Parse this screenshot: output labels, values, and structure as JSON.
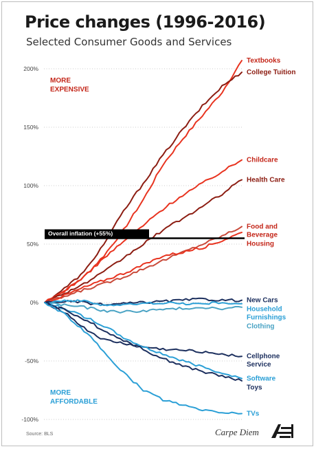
{
  "chart_data": {
    "type": "line",
    "title": "Price changes (1996-2016)",
    "subtitle": "Selected Consumer Goods and Services",
    "x_range": [
      1996,
      2016
    ],
    "ylim": [
      -100,
      210
    ],
    "y_ticks": [
      "200%",
      "150%",
      "100%",
      "50%",
      "0%",
      "-50%",
      "-100%"
    ],
    "y_tick_values": [
      200,
      150,
      100,
      50,
      0,
      -50,
      -100
    ],
    "grid": "horizontal dotted",
    "annotations": {
      "more_expensive": [
        "MORE",
        "EXPENSIVE"
      ],
      "more_affordable": [
        "MORE",
        "AFFORDABLE"
      ],
      "inflation_label": "Overall inflation (+55%)",
      "inflation_value": 55
    },
    "series": [
      {
        "name": "Textbooks",
        "color": "#e8331f",
        "end": 207,
        "points": [
          [
            1996,
            0
          ],
          [
            1998,
            10
          ],
          [
            2000,
            22
          ],
          [
            2002,
            40
          ],
          [
            2004,
            62
          ],
          [
            2006,
            88
          ],
          [
            2008,
            118
          ],
          [
            2010,
            140
          ],
          [
            2012,
            160
          ],
          [
            2014,
            180
          ],
          [
            2016,
            207
          ]
        ]
      },
      {
        "name": "College Tuition",
        "color": "#8c1d12",
        "end": 197,
        "points": [
          [
            1996,
            0
          ],
          [
            1998,
            12
          ],
          [
            2000,
            26
          ],
          [
            2002,
            50
          ],
          [
            2004,
            78
          ],
          [
            2006,
            102
          ],
          [
            2008,
            126
          ],
          [
            2010,
            148
          ],
          [
            2012,
            168
          ],
          [
            2014,
            185
          ],
          [
            2016,
            197
          ]
        ]
      },
      {
        "name": "Childcare",
        "color": "#e8331f",
        "end": 122,
        "points": [
          [
            1996,
            0
          ],
          [
            1998,
            10
          ],
          [
            2000,
            22
          ],
          [
            2002,
            38
          ],
          [
            2004,
            52
          ],
          [
            2006,
            66
          ],
          [
            2008,
            80
          ],
          [
            2010,
            92
          ],
          [
            2012,
            102
          ],
          [
            2014,
            112
          ],
          [
            2016,
            122
          ]
        ]
      },
      {
        "name": "Health Care",
        "color": "#8c1d12",
        "end": 105,
        "points": [
          [
            1996,
            0
          ],
          [
            1998,
            8
          ],
          [
            2000,
            16
          ],
          [
            2002,
            26
          ],
          [
            2004,
            38
          ],
          [
            2006,
            50
          ],
          [
            2008,
            62
          ],
          [
            2010,
            72
          ],
          [
            2012,
            82
          ],
          [
            2014,
            93
          ],
          [
            2016,
            105
          ]
        ]
      },
      {
        "name": "Food and Beverage",
        "color": "#c94a3a",
        "end": 65,
        "points": [
          [
            1996,
            0
          ],
          [
            1998,
            5
          ],
          [
            2000,
            11
          ],
          [
            2002,
            16
          ],
          [
            2004,
            22
          ],
          [
            2006,
            29
          ],
          [
            2008,
            36
          ],
          [
            2010,
            43
          ],
          [
            2012,
            50
          ],
          [
            2014,
            57
          ],
          [
            2016,
            65
          ]
        ]
      },
      {
        "name": "Housing",
        "color": "#e8331f",
        "end": 60,
        "points": [
          [
            1996,
            0
          ],
          [
            1998,
            6
          ],
          [
            2000,
            13
          ],
          [
            2002,
            19
          ],
          [
            2004,
            25
          ],
          [
            2006,
            32
          ],
          [
            2008,
            40
          ],
          [
            2010,
            43
          ],
          [
            2012,
            47
          ],
          [
            2014,
            53
          ],
          [
            2016,
            60
          ]
        ]
      },
      {
        "name": "New Cars",
        "color": "#1c2f5e",
        "end": 2,
        "points": [
          [
            1996,
            0
          ],
          [
            1998,
            1
          ],
          [
            2000,
            0
          ],
          [
            2002,
            -2
          ],
          [
            2004,
            -1
          ],
          [
            2006,
            0
          ],
          [
            2008,
            1
          ],
          [
            2010,
            2
          ],
          [
            2012,
            3
          ],
          [
            2014,
            2
          ],
          [
            2016,
            2
          ]
        ]
      },
      {
        "name": "Household Furnishings",
        "color": "#2a9fd6",
        "end": -1,
        "points": [
          [
            1996,
            0
          ],
          [
            1998,
            2
          ],
          [
            2000,
            1
          ],
          [
            2002,
            -2
          ],
          [
            2004,
            -2
          ],
          [
            2006,
            -1
          ],
          [
            2008,
            0
          ],
          [
            2010,
            -1
          ],
          [
            2012,
            -1
          ],
          [
            2014,
            0
          ],
          [
            2016,
            -1
          ]
        ]
      },
      {
        "name": "Clothing",
        "color": "#4aa3c4",
        "end": -4,
        "points": [
          [
            1996,
            0
          ],
          [
            1998,
            -2
          ],
          [
            2000,
            -4
          ],
          [
            2002,
            -7
          ],
          [
            2004,
            -8
          ],
          [
            2006,
            -7
          ],
          [
            2008,
            -6
          ],
          [
            2010,
            -5
          ],
          [
            2012,
            -4
          ],
          [
            2014,
            -5
          ],
          [
            2016,
            -4
          ]
        ]
      },
      {
        "name": "Cellphone Service",
        "color": "#1c2f5e",
        "end": -46,
        "points": [
          [
            1996,
            0
          ],
          [
            1998,
            -8
          ],
          [
            2000,
            -22
          ],
          [
            2002,
            -32
          ],
          [
            2004,
            -35
          ],
          [
            2006,
            -38
          ],
          [
            2008,
            -40
          ],
          [
            2010,
            -41
          ],
          [
            2012,
            -42
          ],
          [
            2014,
            -44
          ],
          [
            2016,
            -46
          ]
        ]
      },
      {
        "name": "Software",
        "color": "#2a9fd6",
        "end": -65,
        "points": [
          [
            1996,
            0
          ],
          [
            1998,
            -5
          ],
          [
            2000,
            -12
          ],
          [
            2002,
            -20
          ],
          [
            2004,
            -30
          ],
          [
            2006,
            -38
          ],
          [
            2008,
            -44
          ],
          [
            2010,
            -50
          ],
          [
            2012,
            -55
          ],
          [
            2014,
            -60
          ],
          [
            2016,
            -65
          ]
        ]
      },
      {
        "name": "Toys",
        "color": "#1c2f5e",
        "end": -67,
        "points": [
          [
            1996,
            0
          ],
          [
            1998,
            -6
          ],
          [
            2000,
            -14
          ],
          [
            2002,
            -24
          ],
          [
            2004,
            -32
          ],
          [
            2006,
            -40
          ],
          [
            2008,
            -48
          ],
          [
            2010,
            -54
          ],
          [
            2012,
            -59
          ],
          [
            2014,
            -63
          ],
          [
            2016,
            -67
          ]
        ]
      },
      {
        "name": "TVs",
        "color": "#2a9fd6",
        "end": -95,
        "points": [
          [
            1996,
            0
          ],
          [
            1998,
            -10
          ],
          [
            2000,
            -24
          ],
          [
            2002,
            -42
          ],
          [
            2004,
            -60
          ],
          [
            2006,
            -75
          ],
          [
            2008,
            -83
          ],
          [
            2010,
            -88
          ],
          [
            2012,
            -92
          ],
          [
            2014,
            -94
          ],
          [
            2016,
            -95
          ]
        ]
      }
    ],
    "labels": [
      {
        "series": "Textbooks",
        "lines": [
          "Textbooks"
        ],
        "color": "#c4271a"
      },
      {
        "series": "College Tuition",
        "lines": [
          "College Tuition"
        ],
        "color": "#8c1d12"
      },
      {
        "series": "Childcare",
        "lines": [
          "Childcare"
        ],
        "color": "#c4271a"
      },
      {
        "series": "Health Care",
        "lines": [
          "Health Care"
        ],
        "color": "#8c1d12"
      },
      {
        "series": "Food and Beverage",
        "lines": [
          "Food and",
          "Beverage"
        ],
        "color": "#c4271a"
      },
      {
        "series": "Housing",
        "lines": [
          "Housing"
        ],
        "color": "#c4271a"
      },
      {
        "series": "New Cars",
        "lines": [
          "New Cars"
        ],
        "color": "#1c2f5e"
      },
      {
        "series": "Household Furnishings",
        "lines": [
          "Household",
          "Furnishings"
        ],
        "color": "#2a9fd6"
      },
      {
        "series": "Clothing",
        "lines": [
          "Clothing"
        ],
        "color": "#4aa3c4"
      },
      {
        "series": "Cellphone Service",
        "lines": [
          "Cellphone",
          "Service"
        ],
        "color": "#1c2f5e"
      },
      {
        "series": "Software",
        "lines": [
          "Software"
        ],
        "color": "#2a9fd6"
      },
      {
        "series": "Toys",
        "lines": [
          "Toys"
        ],
        "color": "#1c2f5e"
      },
      {
        "series": "TVs",
        "lines": [
          "TVs"
        ],
        "color": "#2a9fd6"
      }
    ]
  },
  "footer": {
    "source": "Source: BLS",
    "brand": "Carpe Diem",
    "logo_text": "AEI"
  },
  "colors": {
    "expensive": "#c4271a",
    "affordable": "#2a9fd6",
    "inflation_line": "#000000"
  }
}
